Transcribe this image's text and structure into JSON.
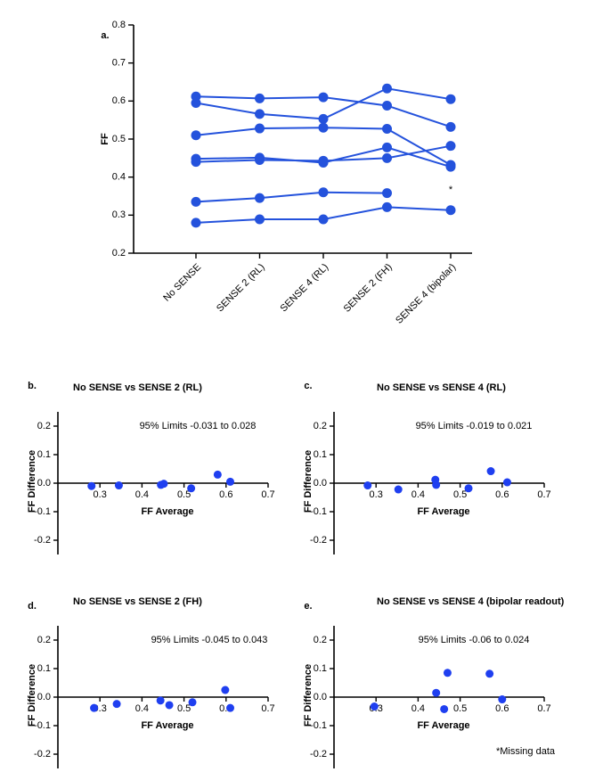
{
  "chart_data": [
    {
      "type": "line",
      "label": "a.",
      "y_label": "FF",
      "annotation": "*",
      "categories": [
        "No SENSE",
        "SENSE 2 (RL)",
        "SENSE 4 (RL)",
        "SENSE 2 (FH)",
        "SENSE 4 (bipolar)"
      ],
      "ylim": [
        0.2,
        0.8
      ],
      "yticks": [
        0.2,
        0.3,
        0.4,
        0.5,
        0.6,
        0.7,
        0.8
      ],
      "color": "#2452dc",
      "series": [
        {
          "values": [
            0.612,
            0.607,
            0.61,
            0.588,
            0.532
          ]
        },
        {
          "values": [
            0.595,
            0.566,
            0.553,
            0.633,
            0.605
          ]
        },
        {
          "values": [
            0.51,
            0.528,
            0.53,
            0.527,
            0.432
          ]
        },
        {
          "values": [
            0.448,
            0.451,
            0.438,
            0.478,
            0.427
          ]
        },
        {
          "values": [
            0.44,
            0.445,
            0.443,
            0.45,
            0.482
          ]
        },
        {
          "values": [
            0.335,
            0.345,
            0.36,
            0.358,
            null
          ]
        },
        {
          "values": [
            0.28,
            0.289,
            0.289,
            0.321,
            0.313
          ]
        }
      ]
    },
    {
      "type": "scatter",
      "label": "b.",
      "title": "No SENSE vs SENSE 2 (RL)",
      "annotation": "95% Limits -0.031 to 0.028",
      "x_label": "FF Average",
      "y_label": "FF Difference",
      "color": "#1f3ff0",
      "x": [
        0.28,
        0.345,
        0.445,
        0.452,
        0.517,
        0.58,
        0.61
      ],
      "values": [
        -0.01,
        -0.008,
        -0.006,
        -0.002,
        -0.018,
        0.03,
        0.005
      ],
      "xlim": [
        0.2,
        0.7
      ],
      "xticks": [
        0.3,
        0.4,
        0.5,
        0.6,
        0.7
      ],
      "ylim": [
        -0.25,
        0.25
      ],
      "yticks": [
        -0.2,
        -0.1,
        {
          "value": 0,
          "label": "0.0"
        },
        0.1,
        0.2
      ]
    },
    {
      "type": "scatter",
      "label": "c.",
      "title": "No SENSE vs SENSE 4 (RL)",
      "annotation": "95% Limits -0.019 to 0.021",
      "x_label": "FF Average",
      "y_label": "FF Difference",
      "color": "#1f3ff0",
      "x": [
        0.28,
        0.353,
        0.441,
        0.443,
        0.52,
        0.573,
        0.612
      ],
      "values": [
        -0.008,
        -0.022,
        0.012,
        -0.006,
        -0.018,
        0.042,
        0.003
      ],
      "xlim": [
        0.2,
        0.7
      ],
      "xticks": [
        0.3,
        0.4,
        0.5,
        0.6,
        0.7
      ],
      "ylim": [
        -0.25,
        0.25
      ],
      "yticks": [
        -0.2,
        -0.1,
        {
          "value": 0,
          "label": "0.0"
        },
        0.1,
        0.2
      ]
    },
    {
      "type": "scatter",
      "label": "d.",
      "title": "No SENSE vs SENSE 2 (FH)",
      "annotation": "95% Limits -0.045 to 0.043",
      "x_label": "FF Average",
      "y_label": "FF Difference",
      "color": "#1f3ff0",
      "x": [
        0.286,
        0.34,
        0.444,
        0.465,
        0.52,
        0.598,
        0.61
      ],
      "values": [
        -0.038,
        -0.024,
        -0.012,
        -0.028,
        -0.018,
        0.025,
        -0.038
      ],
      "xlim": [
        0.2,
        0.7
      ],
      "xticks": [
        0.3,
        0.4,
        0.5,
        0.6,
        0.7
      ],
      "ylim": [
        -0.25,
        0.25
      ],
      "yticks": [
        -0.2,
        -0.1,
        {
          "value": 0,
          "label": "0.0"
        },
        0.1,
        0.2
      ]
    },
    {
      "type": "scatter",
      "label": "e.",
      "title": "No SENSE vs SENSE 4 (bipolar readout)",
      "annotation": "95% Limits -0.06 to 0.024",
      "x_label": "FF Average",
      "y_label": "FF Difference",
      "color": "#1f3ff0",
      "x": [
        0.296,
        0.443,
        0.462,
        0.47,
        0.57,
        0.6
      ],
      "values": [
        -0.033,
        0.015,
        -0.042,
        0.085,
        0.082,
        -0.008
      ],
      "xlim": [
        0.2,
        0.7
      ],
      "xticks": [
        0.3,
        0.4,
        0.5,
        0.6,
        0.7
      ],
      "ylim": [
        -0.25,
        0.25
      ],
      "yticks": [
        -0.2,
        -0.1,
        {
          "value": 0,
          "label": "0.0"
        },
        0.1,
        0.2
      ]
    }
  ],
  "footnote": "*Missing data"
}
